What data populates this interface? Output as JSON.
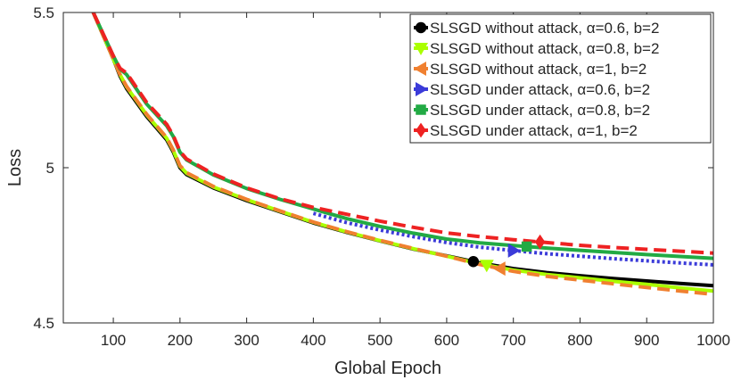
{
  "chart_data": {
    "type": "line",
    "title": "",
    "xlabel": "Global Epoch",
    "ylabel": "Loss",
    "xlim": [
      25,
      1000
    ],
    "ylim": [
      4.5,
      5.5
    ],
    "xticks": [
      100,
      200,
      300,
      400,
      500,
      600,
      700,
      800,
      900,
      1000
    ],
    "xtick_labels": [
      "100",
      "200",
      "300",
      "400",
      "500",
      "600",
      "700",
      "800",
      "900",
      "1000"
    ],
    "yticks": [
      4.5,
      5,
      5.5
    ],
    "ytick_labels": [
      "4.5",
      "5",
      "5.5"
    ],
    "grid": false,
    "legend_position": "top-right",
    "series": [
      {
        "name": "SLSGD without attack, α=0.6, b=2",
        "label_prefix": "SLSGD without attack, ",
        "label_param": "α=0.6, b=2",
        "color": "#000000",
        "line_style": "solid",
        "marker": "circle",
        "marker_at": 640,
        "x": [
          70,
          100,
          110,
          120,
          150,
          180,
          190,
          200,
          210,
          250,
          300,
          350,
          400,
          450,
          500,
          550,
          600,
          650,
          700,
          750,
          800,
          850,
          900,
          950,
          1000
        ],
        "y": [
          5.5,
          5.35,
          5.295,
          5.255,
          5.165,
          5.09,
          5.05,
          5.0,
          4.978,
          4.935,
          4.894,
          4.858,
          4.822,
          4.792,
          4.764,
          4.738,
          4.716,
          4.693,
          4.675,
          4.662,
          4.652,
          4.643,
          4.635,
          4.627,
          4.62
        ]
      },
      {
        "name": "SLSGD without attack, α=0.8, b=2",
        "label_prefix": "SLSGD without attack, ",
        "label_param": "α=0.8, b=2",
        "color": "#aaff00",
        "line_style": "solid",
        "marker": "triangle-down",
        "marker_at": 660,
        "x": [
          70,
          100,
          110,
          120,
          150,
          180,
          190,
          200,
          210,
          250,
          300,
          350,
          400,
          450,
          500,
          550,
          600,
          650,
          700,
          750,
          800,
          850,
          900,
          950,
          1000
        ],
        "y": [
          5.5,
          5.35,
          5.3,
          5.26,
          5.17,
          5.095,
          5.055,
          5.005,
          4.982,
          4.938,
          4.897,
          4.86,
          4.824,
          4.793,
          4.765,
          4.739,
          4.715,
          4.69,
          4.67,
          4.656,
          4.645,
          4.634,
          4.624,
          4.613,
          4.603
        ]
      },
      {
        "name": "SLSGD without attack, α=1, b=2",
        "label_prefix": "SLSGD without attack, ",
        "label_param": "α=1, b=2",
        "color": "#f08030",
        "line_style": "dashed",
        "marker": "triangle-left",
        "marker_at": 680,
        "x": [
          70,
          100,
          110,
          120,
          150,
          180,
          190,
          200,
          210,
          250,
          300,
          350,
          400,
          450,
          500,
          550,
          600,
          650,
          700,
          750,
          800,
          850,
          900,
          950,
          1000
        ],
        "y": [
          5.5,
          5.35,
          5.3,
          5.262,
          5.172,
          5.097,
          5.057,
          5.007,
          4.984,
          4.94,
          4.898,
          4.861,
          4.825,
          4.794,
          4.766,
          4.74,
          4.715,
          4.688,
          4.666,
          4.65,
          4.638,
          4.626,
          4.614,
          4.603,
          4.592
        ]
      },
      {
        "name": "SLSGD under attack, α=0.6, b=2",
        "label_prefix": "SLSGD under attack, ",
        "label_param": "α=0.6, b=2",
        "color": "#3b3bd9",
        "line_style": "dotted",
        "marker": "triangle-right",
        "marker_at": 700,
        "x": [
          400,
          450,
          500,
          550,
          600,
          650,
          700,
          750,
          800,
          850,
          900,
          950,
          1000
        ],
        "y": [
          4.853,
          4.823,
          4.799,
          4.778,
          4.759,
          4.744,
          4.733,
          4.723,
          4.715,
          4.707,
          4.7,
          4.693,
          4.687
        ]
      },
      {
        "name": "SLSGD under attack, α=0.8, b=2",
        "label_prefix": "SLSGD under attack, ",
        "label_param": "α=0.8, b=2",
        "color": "#22aa44",
        "line_style": "solid",
        "marker": "square",
        "marker_at": 720,
        "x": [
          70,
          100,
          110,
          120,
          150,
          180,
          190,
          200,
          210,
          250,
          300,
          350,
          400,
          450,
          500,
          550,
          600,
          650,
          700,
          750,
          800,
          850,
          900,
          950,
          1000
        ],
        "y": [
          5.5,
          5.36,
          5.318,
          5.3,
          5.205,
          5.135,
          5.1,
          5.05,
          5.025,
          4.977,
          4.933,
          4.898,
          4.867,
          4.836,
          4.811,
          4.789,
          4.77,
          4.758,
          4.749,
          4.741,
          4.734,
          4.727,
          4.72,
          4.714,
          4.708
        ]
      },
      {
        "name": "SLSGD under attack, α=1, b=2",
        "label_prefix": "SLSGD under attack, ",
        "label_param": "α=1, b=2",
        "color": "#ee2222",
        "line_style": "dashed",
        "marker": "diamond",
        "marker_at": 740,
        "x": [
          70,
          100,
          110,
          120,
          150,
          180,
          190,
          200,
          210,
          250,
          300,
          350,
          400,
          450,
          500,
          550,
          600,
          650,
          700,
          750,
          800,
          850,
          900,
          950,
          1000
        ],
        "y": [
          5.5,
          5.36,
          5.32,
          5.305,
          5.21,
          5.14,
          5.103,
          5.053,
          5.028,
          4.98,
          4.935,
          4.9,
          4.872,
          4.85,
          4.828,
          4.808,
          4.79,
          4.778,
          4.768,
          4.759,
          4.75,
          4.743,
          4.737,
          4.731,
          4.725
        ]
      }
    ]
  }
}
